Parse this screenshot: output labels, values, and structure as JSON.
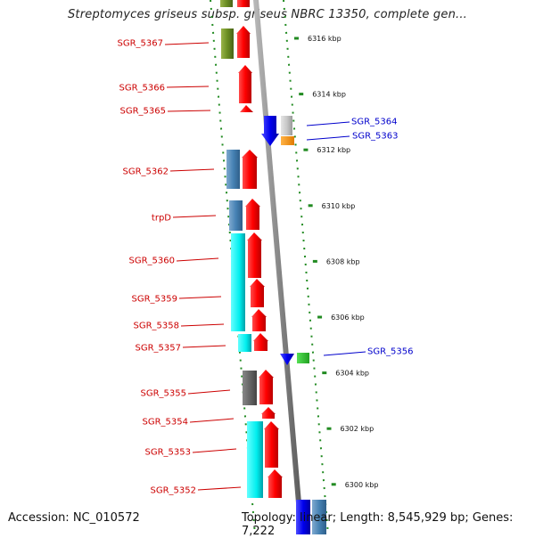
{
  "title": "Streptomyces griseus subsp. griseus NBRC 13350, complete gen...",
  "footer": {
    "accession": "Accession: NC_010572",
    "summary": "Topology: linear; Length: 8,545,929 bp; Genes: 7,222"
  },
  "colors": {
    "left_label": "#cc0000",
    "right_label": "#0000cc",
    "axis": "#888888",
    "tick": "#228b22"
  },
  "positions": [
    {
      "label": "6316 kbp",
      "kb": 6316
    },
    {
      "label": "6314 kbp",
      "kb": 6314
    },
    {
      "label": "6312 kbp",
      "kb": 6312
    },
    {
      "label": "6310 kbp",
      "kb": 6310
    },
    {
      "label": "6308 kbp",
      "kb": 6308
    },
    {
      "label": "6306 kbp",
      "kb": 6306
    },
    {
      "label": "6304 kbp",
      "kb": 6304
    },
    {
      "label": "6302 kbp",
      "kb": 6302
    },
    {
      "label": "6300 kbp",
      "kb": 6300
    }
  ],
  "left_genes": [
    {
      "name": "SGR_5367"
    },
    {
      "name": "SGR_5366"
    },
    {
      "name": "SGR_5365"
    },
    {
      "name": "SGR_5362"
    },
    {
      "name": "trpD"
    },
    {
      "name": "SGR_5360"
    },
    {
      "name": "SGR_5359"
    },
    {
      "name": "SGR_5358"
    },
    {
      "name": "SGR_5357"
    },
    {
      "name": "SGR_5355"
    },
    {
      "name": "SGR_5354"
    },
    {
      "name": "SGR_5353"
    },
    {
      "name": "SGR_5352"
    }
  ],
  "right_genes": [
    {
      "name": "SGR_5364"
    },
    {
      "name": "SGR_5363"
    },
    {
      "name": "SGR_5356"
    }
  ]
}
